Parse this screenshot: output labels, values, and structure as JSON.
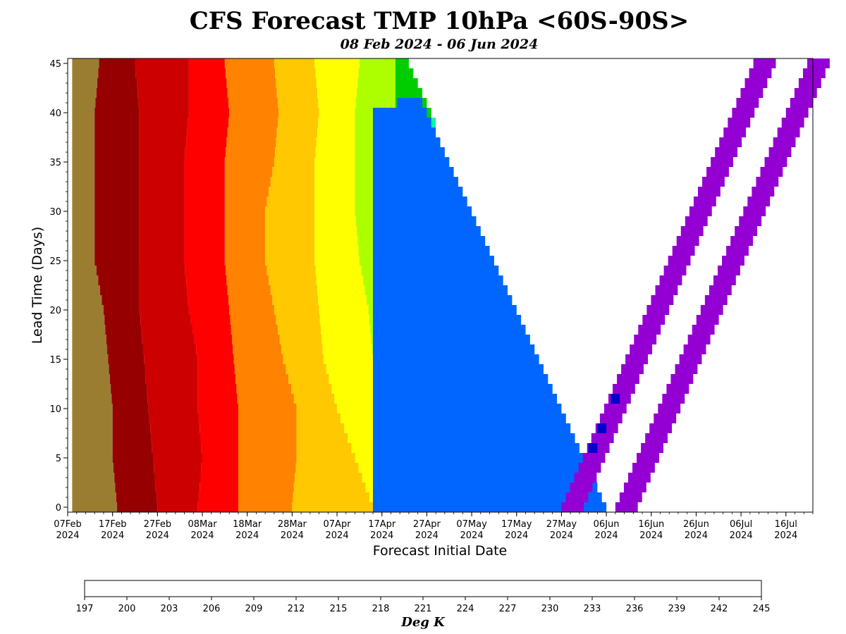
{
  "chart_data": {
    "type": "heatmap",
    "title": "CFS Forecast TMP 10hPa <60S-90S>",
    "subtitle": "08 Feb 2024 - 06 Jun 2024",
    "xlabel": "Forecast Initial Date",
    "ylabel": "Lead Time (Days)",
    "xlim": [
      "2024-02-07",
      "2024-07-22"
    ],
    "ylim": [
      0,
      45
    ],
    "x_ticks": [
      {
        "date": "2024-02-07",
        "line1": "07Feb",
        "line2": "2024"
      },
      {
        "date": "2024-02-17",
        "line1": "17Feb",
        "line2": "2024"
      },
      {
        "date": "2024-02-27",
        "line1": "27Feb",
        "line2": "2024"
      },
      {
        "date": "2024-03-08",
        "line1": "08Mar",
        "line2": "2024"
      },
      {
        "date": "2024-03-18",
        "line1": "18Mar",
        "line2": "2024"
      },
      {
        "date": "2024-03-28",
        "line1": "28Mar",
        "line2": "2024"
      },
      {
        "date": "2024-04-07",
        "line1": "07Apr",
        "line2": "2024"
      },
      {
        "date": "2024-04-17",
        "line1": "17Apr",
        "line2": "2024"
      },
      {
        "date": "2024-04-27",
        "line1": "27Apr",
        "line2": "2024"
      },
      {
        "date": "2024-05-07",
        "line1": "07May",
        "line2": "2024"
      },
      {
        "date": "2024-05-17",
        "line1": "17May",
        "line2": "2024"
      },
      {
        "date": "2024-05-27",
        "line1": "27May",
        "line2": "2024"
      },
      {
        "date": "2024-06-06",
        "line1": "06Jun",
        "line2": "2024"
      },
      {
        "date": "2024-06-16",
        "line1": "16Jun",
        "line2": "2024"
      },
      {
        "date": "2024-06-26",
        "line1": "26Jun",
        "line2": "2024"
      },
      {
        "date": "2024-07-06",
        "line1": "06Jul",
        "line2": "2024"
      },
      {
        "date": "2024-07-16",
        "line1": "16Jul",
        "line2": "2024"
      }
    ],
    "y_ticks": [
      0,
      5,
      10,
      15,
      20,
      25,
      30,
      35,
      40,
      45
    ],
    "colorbar": {
      "label": "Deg K",
      "boundaries": [
        197,
        200,
        203,
        206,
        209,
        212,
        215,
        218,
        221,
        224,
        227,
        230,
        233,
        236,
        239,
        242,
        245
      ],
      "colors": [
        "#9400d3",
        "#0000cd",
        "#0066ff",
        "#1ec8ff",
        "#00ff99",
        "#00cd00",
        "#adff00",
        "#ffff00",
        "#ffc800",
        "#ff8200",
        "#ff0000",
        "#cd0000",
        "#960000",
        "#9b7d32",
        "#828282",
        "#9b9b9b"
      ]
    },
    "valid_date_range": [
      "2024-02-08",
      "2024-06-06"
    ],
    "band_boundaries": {
      "lead_days": [
        0,
        5,
        10,
        15,
        20,
        25,
        30,
        35,
        40,
        45
      ],
      "valid_dates": [
        [
          "2024-02-08",
          "2024-02-08",
          "2024-02-08",
          "2024-02-08",
          "2024-02-08",
          "2024-02-08",
          "2024-02-08",
          "2024-02-08",
          "2024-02-08",
          "2024-02-08"
        ],
        [
          "2024-02-18",
          "2024-02-17",
          "2024-02-17",
          "2024-02-16",
          "2024-02-15",
          "2024-02-13",
          "2024-02-13",
          "2024-02-13",
          "2024-02-13",
          "2024-02-14"
        ],
        [
          "2024-02-27",
          "2024-02-26",
          "2024-02-25",
          "2024-02-24",
          "2024-02-23",
          "2024-02-23",
          "2024-02-23",
          "2024-02-23",
          "2024-02-23",
          "2024-02-22"
        ],
        [
          "2024-03-07",
          "2024-03-08",
          "2024-03-07",
          "2024-03-07",
          "2024-03-05",
          "2024-03-04",
          "2024-03-04",
          "2024-03-04",
          "2024-03-05",
          "2024-03-05"
        ],
        [
          "2024-03-16",
          "2024-03-16",
          "2024-03-16",
          "2024-03-15",
          "2024-03-14",
          "2024-03-13",
          "2024-03-13",
          "2024-03-13",
          "2024-03-14",
          "2024-03-13"
        ],
        [
          "2024-03-28",
          "2024-03-29",
          "2024-03-29",
          "2024-03-26",
          "2024-03-24",
          "2024-03-22",
          "2024-03-22",
          "2024-03-24",
          "2024-03-25",
          "2024-03-24"
        ],
        [
          "2024-04-15",
          "2024-04-11",
          "2024-04-07",
          "2024-04-04",
          "2024-04-03",
          "2024-04-02",
          "2024-04-02",
          "2024-04-02",
          "2024-04-03",
          "2024-04-02"
        ],
        [
          "2024-04-15",
          "2024-04-15",
          "2024-04-15",
          "2024-04-15",
          "2024-04-14",
          "2024-04-12",
          "2024-04-11",
          "2024-04-11",
          "2024-04-11",
          "2024-04-12"
        ],
        [
          "2024-04-15",
          "2024-04-15",
          "2024-04-15",
          "2024-04-15",
          "2024-04-15",
          "2024-04-15",
          "2024-04-17",
          "2024-04-19",
          "2024-04-20",
          "2024-04-20"
        ],
        [
          "2024-04-15",
          "2024-04-15",
          "2024-04-15",
          "2024-04-15",
          "2024-04-15",
          "2024-04-15",
          "2024-04-15",
          "2024-04-27",
          "2024-04-28",
          "2024-04-29"
        ],
        [
          "2024-04-15",
          "2024-04-15",
          "2024-04-15",
          "2024-04-15",
          "2024-04-15",
          "2024-04-15",
          "2024-04-15",
          "2024-04-15",
          "2024-05-03",
          "2024-05-04"
        ],
        [
          "2024-04-15",
          "2024-04-15",
          "2024-04-15",
          "2024-04-15",
          "2024-04-15",
          "2024-04-15",
          "2024-04-15",
          "2024-04-15",
          "2024-04-15",
          "2024-05-12"
        ]
      ]
    },
    "diagonal_bands": [
      {
        "start_date": "2024-05-27",
        "end_date": "2024-06-06",
        "lead_start": 0,
        "lead_end": 45,
        "color_index": 0
      },
      {
        "start_date": "2024-06-08",
        "end_date": "2024-06-06",
        "lead_start": 0,
        "lead_end": 45,
        "color_index": 0
      }
    ],
    "notes_cells": [
      {
        "initial_date": "2024-06-02",
        "lead": 6,
        "color_index": 1
      },
      {
        "initial_date": "2024-06-04",
        "lead": 8,
        "color_index": 1
      },
      {
        "initial_date": "2024-06-07",
        "lead": 11,
        "color_index": 1
      }
    ]
  }
}
